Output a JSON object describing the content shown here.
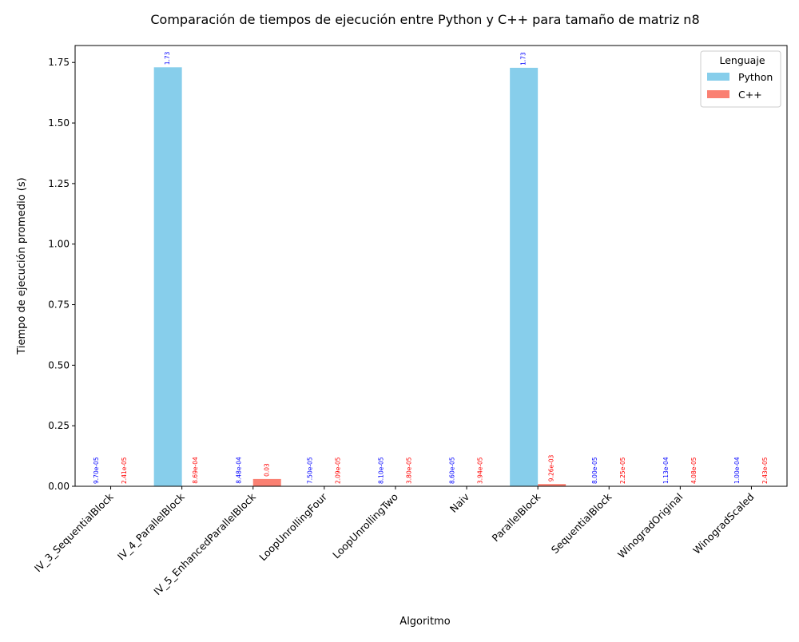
{
  "chart_data": {
    "type": "bar",
    "title": "Comparación de tiempos de ejecución entre Python y C++ para tamaño de matriz n8",
    "xlabel": "Algoritmo",
    "ylabel": "Tiempo de ejecución promedio (s)",
    "ylim": [
      0,
      1.82
    ],
    "yticks": [
      "0.00",
      "0.25",
      "0.50",
      "0.75",
      "1.00",
      "1.25",
      "1.50",
      "1.75"
    ],
    "grid": false,
    "legend": {
      "title": "Lenguaje",
      "position": "top-right"
    },
    "categories": [
      "IV_3_SequentialBlock",
      "IV_4_ParallelBlock",
      "IV_5_EnhancedParallelBlock",
      "LoopUnrollingFour",
      "LoopUnrollingTwo",
      "Naiv",
      "ParallelBlock",
      "SequentialBlock",
      "WinogradOriginal",
      "WinogradScaled"
    ],
    "series": [
      {
        "name": "Python",
        "color": "#87ceeb",
        "label_color": "#0000ff",
        "values": [
          9.7e-05,
          1.73,
          0.000848,
          7.5e-05,
          8.1e-05,
          8.6e-05,
          1.728,
          8e-05,
          0.000113,
          0.0001
        ],
        "labels": [
          "9.70e-05",
          "1.73",
          "8.48e-04",
          "7.50e-05",
          "8.10e-05",
          "8.60e-05",
          "1.73",
          "8.00e-05",
          "1.13e-04",
          "1.00e-04"
        ]
      },
      {
        "name": "C++",
        "color": "#fa8072",
        "label_color": "#ff0000",
        "values": [
          2.41e-05,
          0.000869,
          0.03,
          2.09e-05,
          3.8e-05,
          3.94e-05,
          0.00926,
          2.25e-05,
          4.08e-05,
          2.43e-05
        ],
        "labels": [
          "2.41e-05",
          "8.69e-04",
          "0.03",
          "2.09e-05",
          "3.80e-05",
          "3.94e-05",
          "9.26e-03",
          "2.25e-05",
          "4.08e-05",
          "2.43e-05"
        ]
      }
    ]
  }
}
